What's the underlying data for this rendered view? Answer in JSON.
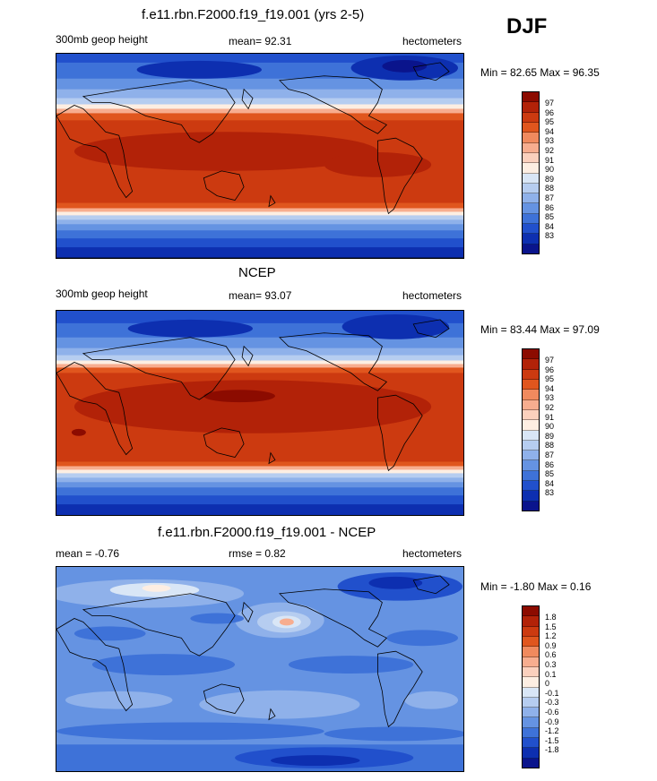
{
  "season": "DJF",
  "panels": [
    {
      "title": "f.e11.rbn.F2000.f19_f19.001 (yrs 2-5)",
      "left_label": "300mb geop height",
      "center_label": "mean=  92.31",
      "right_label": "hectometers",
      "minmax": "Min =  82.65 Max =  96.35",
      "colorbar_labels": [
        "97",
        "96",
        "95",
        "94",
        "93",
        "92",
        "91",
        "90",
        "89",
        "88",
        "87",
        "86",
        "85",
        "84",
        "83"
      ],
      "colors": [
        "#8c0b00",
        "#b22208",
        "#cc3a10",
        "#e0561e",
        "#f08a5e",
        "#f7ad8f",
        "#fbd0bd",
        "#fdeee2",
        "#d9e6f6",
        "#b6cdf0",
        "#8fb1ea",
        "#6593e2",
        "#3e72d8",
        "#2150cc",
        "#0d2fb0",
        "#0a148c"
      ]
    },
    {
      "title": "NCEP",
      "left_label": "300mb geop height",
      "center_label": "mean=  93.07",
      "right_label": "hectometers",
      "minmax": "Min =  83.44 Max =  97.09",
      "colorbar_labels": [
        "97",
        "96",
        "95",
        "94",
        "93",
        "92",
        "91",
        "90",
        "89",
        "88",
        "87",
        "86",
        "85",
        "84",
        "83"
      ],
      "colors": [
        "#8c0b00",
        "#b22208",
        "#cc3a10",
        "#e0561e",
        "#f08a5e",
        "#f7ad8f",
        "#fbd0bd",
        "#fdeee2",
        "#d9e6f6",
        "#b6cdf0",
        "#8fb1ea",
        "#6593e2",
        "#3e72d8",
        "#2150cc",
        "#0d2fb0",
        "#0a148c"
      ]
    },
    {
      "title": "f.e11.rbn.F2000.f19_f19.001 - NCEP",
      "left_label": "mean =  -0.76",
      "center_label": "rmse =  0.82",
      "right_label": "hectometers",
      "minmax": "Min =  -1.80 Max =   0.16",
      "colorbar_labels": [
        "1.8",
        "1.5",
        "1.2",
        "0.9",
        "0.6",
        "0.3",
        "0.1",
        "0",
        "-0.1",
        "-0.3",
        "-0.6",
        "-0.9",
        "-1.2",
        "-1.5",
        "-1.8"
      ],
      "colors": [
        "#8c0b00",
        "#b22208",
        "#cc3a10",
        "#e0561e",
        "#f08a5e",
        "#f7ad8f",
        "#fbd0bd",
        "#fdeee2",
        "#d9e6f6",
        "#b6cdf0",
        "#8fb1ea",
        "#6593e2",
        "#3e72d8",
        "#2150cc",
        "#0d2fb0",
        "#0a148c"
      ]
    }
  ]
}
